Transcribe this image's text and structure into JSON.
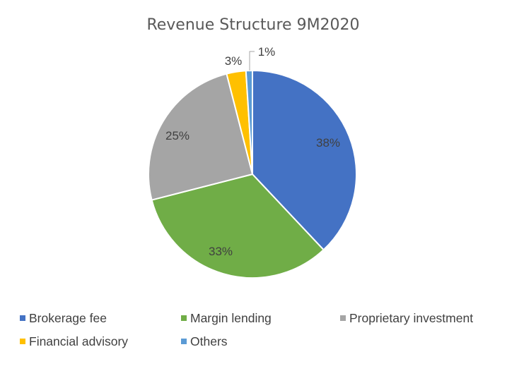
{
  "chart_data": {
    "type": "pie",
    "title": "Revenue Structure 9M2020",
    "categories": [
      "Brokerage fee",
      "Margin lending",
      "Proprietary investment",
      "Financial advisory",
      "Others"
    ],
    "values": [
      38,
      33,
      25,
      3,
      1
    ],
    "data_labels": [
      "38%",
      "33%",
      "25%",
      "3%",
      "1%"
    ],
    "colors": [
      "#4472C4",
      "#70AD47",
      "#A5A5A5",
      "#FFC000",
      "#5B9BD5"
    ],
    "start_angle_deg": 0,
    "direction": "clockwise",
    "legend_position": "bottom"
  }
}
